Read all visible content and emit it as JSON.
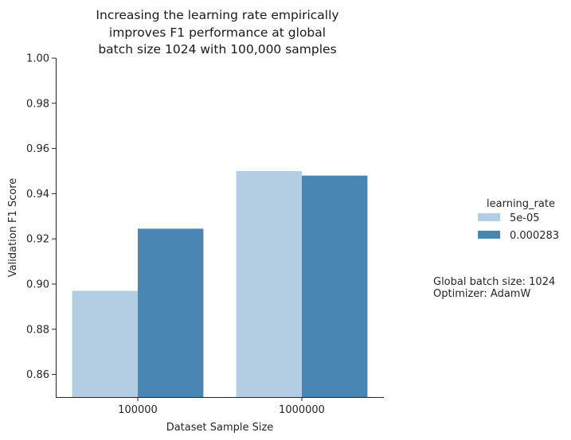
{
  "chart_data": {
    "type": "bar",
    "title_lines": [
      "Increasing the learning rate empirically",
      "improves F1 performance at global",
      "batch size 1024 with 100,000 samples"
    ],
    "xlabel": "Dataset Sample Size",
    "ylabel": "Validation F1 Score",
    "categories": [
      "100000",
      "1000000"
    ],
    "ylim": [
      0.85,
      1.0
    ],
    "yticks": [
      "0.86",
      "0.88",
      "0.90",
      "0.92",
      "0.94",
      "0.96",
      "0.98",
      "1.00"
    ],
    "grid": false,
    "legend": {
      "title": "learning_rate",
      "placement": "right"
    },
    "series": [
      {
        "name": "5e-05",
        "color": "#b3cde3",
        "values": [
          0.897,
          0.95
        ]
      },
      {
        "name": "0.000283",
        "color": "#4a86b4",
        "values": [
          0.9245,
          0.948
        ]
      }
    ],
    "annotation_lines": [
      "Global batch size: 1024",
      "Optimizer: AdamW"
    ]
  }
}
